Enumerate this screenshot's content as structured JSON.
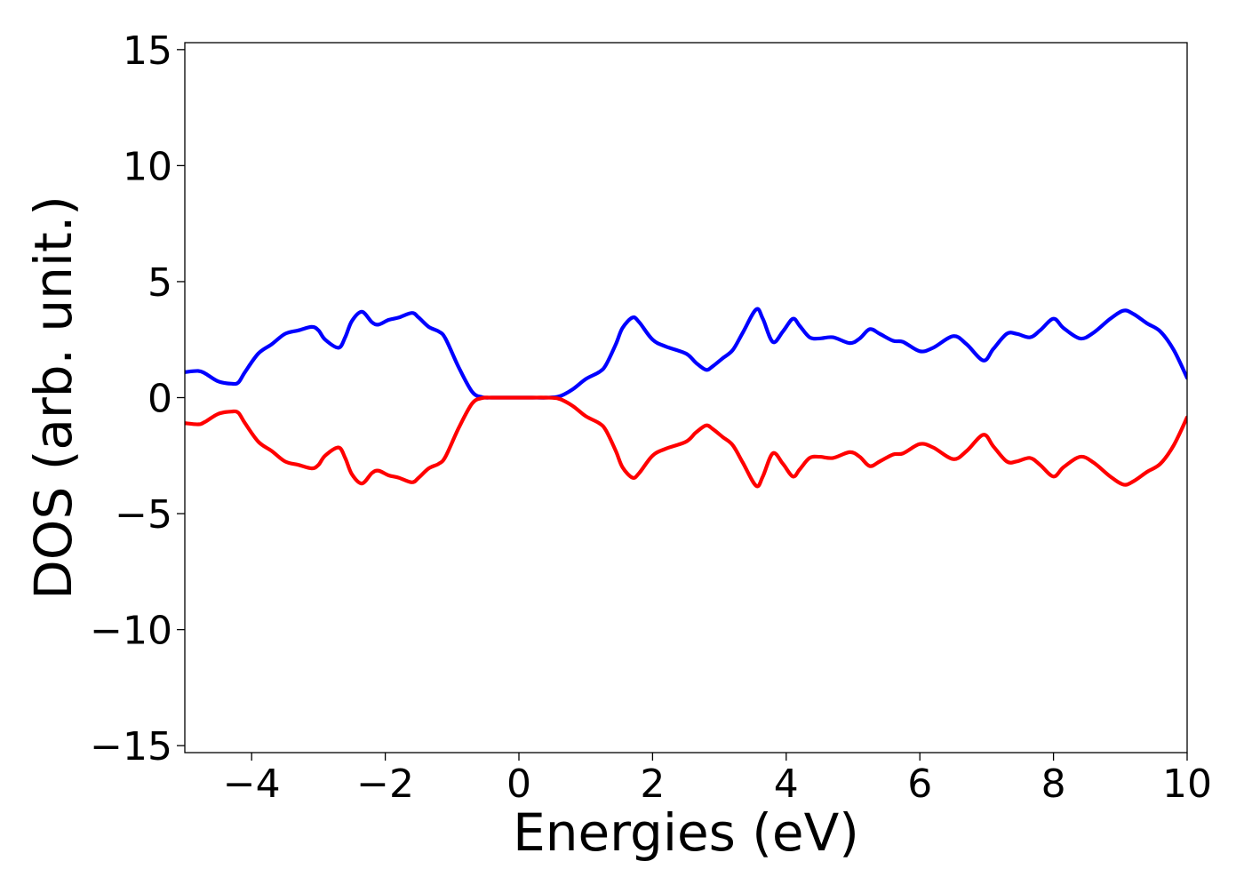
{
  "chart_data": {
    "type": "line",
    "title": "",
    "xlabel": "Energies (eV)",
    "ylabel": "DOS (arb. unit.)",
    "xlim": [
      -5,
      10
    ],
    "ylim": [
      -15.3,
      15.3
    ],
    "xticks": [
      -4,
      -2,
      0,
      2,
      4,
      6,
      8,
      10
    ],
    "xtick_labels": [
      "−4",
      "−2",
      "0",
      "2",
      "4",
      "6",
      "8",
      "10"
    ],
    "yticks": [
      15,
      10,
      5,
      0,
      -5,
      -10,
      -15
    ],
    "ytick_labels": [
      "15",
      "10",
      "5",
      "0",
      "−5",
      "−10",
      "−15"
    ],
    "grid": false,
    "legend": "none",
    "series": [
      {
        "color": "#0000ff",
        "x": [
          -5.0,
          -4.8,
          -4.7,
          -4.5,
          -4.3,
          -4.2,
          -4.1,
          -3.9,
          -3.7,
          -3.5,
          -3.3,
          -3.1,
          -3.0,
          -2.9,
          -2.7,
          -2.6,
          -2.5,
          -2.35,
          -2.2,
          -2.1,
          -1.95,
          -1.8,
          -1.6,
          -1.5,
          -1.35,
          -1.2,
          -1.1,
          -0.9,
          -0.7,
          -0.55,
          -0.4,
          -0.2,
          0.0,
          0.2,
          0.4,
          0.6,
          0.8,
          1.0,
          1.2,
          1.3,
          1.45,
          1.55,
          1.7,
          1.8,
          2.0,
          2.2,
          2.5,
          2.65,
          2.8,
          2.9,
          3.05,
          3.2,
          3.35,
          3.55,
          3.65,
          3.8,
          3.95,
          4.1,
          4.2,
          4.35,
          4.5,
          4.7,
          4.95,
          5.1,
          5.25,
          5.4,
          5.6,
          5.75,
          6.0,
          6.2,
          6.5,
          6.7,
          6.95,
          7.1,
          7.3,
          7.45,
          7.65,
          7.8,
          8.0,
          8.15,
          8.4,
          8.6,
          8.85,
          9.05,
          9.2,
          9.4,
          9.6,
          9.8,
          10.0
        ],
        "y": [
          1.1,
          1.15,
          1.05,
          0.7,
          0.6,
          0.65,
          1.1,
          1.9,
          2.3,
          2.75,
          2.9,
          3.05,
          2.9,
          2.5,
          2.15,
          2.6,
          3.3,
          3.7,
          3.25,
          3.15,
          3.35,
          3.45,
          3.65,
          3.45,
          3.05,
          2.85,
          2.55,
          1.3,
          0.25,
          0.02,
          0.0,
          0.0,
          0.0,
          0.0,
          0.0,
          0.05,
          0.35,
          0.8,
          1.1,
          1.4,
          2.3,
          3.0,
          3.45,
          3.25,
          2.5,
          2.2,
          1.9,
          1.5,
          1.2,
          1.35,
          1.7,
          2.05,
          2.8,
          3.8,
          3.4,
          2.4,
          2.85,
          3.4,
          3.1,
          2.6,
          2.55,
          2.6,
          2.35,
          2.55,
          2.95,
          2.75,
          2.45,
          2.4,
          2.0,
          2.15,
          2.65,
          2.3,
          1.6,
          2.1,
          2.75,
          2.75,
          2.6,
          2.9,
          3.4,
          3.0,
          2.55,
          2.8,
          3.4,
          3.75,
          3.6,
          3.2,
          2.85,
          2.05,
          0.85
        ]
      },
      {
        "color": "#ff0000",
        "x": [
          -5.0,
          -4.8,
          -4.7,
          -4.5,
          -4.3,
          -4.2,
          -4.1,
          -3.9,
          -3.7,
          -3.5,
          -3.3,
          -3.1,
          -3.0,
          -2.9,
          -2.7,
          -2.6,
          -2.5,
          -2.35,
          -2.2,
          -2.1,
          -1.95,
          -1.8,
          -1.6,
          -1.5,
          -1.35,
          -1.2,
          -1.1,
          -0.9,
          -0.7,
          -0.55,
          -0.4,
          -0.2,
          0.0,
          0.2,
          0.4,
          0.6,
          0.8,
          1.0,
          1.2,
          1.3,
          1.45,
          1.55,
          1.7,
          1.8,
          2.0,
          2.2,
          2.5,
          2.65,
          2.8,
          2.9,
          3.05,
          3.2,
          3.35,
          3.55,
          3.65,
          3.8,
          3.95,
          4.1,
          4.2,
          4.35,
          4.5,
          4.7,
          4.95,
          5.1,
          5.25,
          5.4,
          5.6,
          5.75,
          6.0,
          6.2,
          6.5,
          6.7,
          6.95,
          7.1,
          7.3,
          7.45,
          7.65,
          7.8,
          8.0,
          8.15,
          8.4,
          8.6,
          8.85,
          9.05,
          9.2,
          9.4,
          9.6,
          9.8,
          10.0
        ],
        "y": [
          -1.1,
          -1.15,
          -1.05,
          -0.7,
          -0.6,
          -0.65,
          -1.1,
          -1.9,
          -2.3,
          -2.75,
          -2.9,
          -3.05,
          -2.9,
          -2.5,
          -2.15,
          -2.6,
          -3.3,
          -3.7,
          -3.25,
          -3.15,
          -3.35,
          -3.45,
          -3.65,
          -3.45,
          -3.05,
          -2.85,
          -2.55,
          -1.3,
          -0.25,
          -0.02,
          0.0,
          0.0,
          0.0,
          0.0,
          0.0,
          -0.05,
          -0.35,
          -0.8,
          -1.1,
          -1.4,
          -2.3,
          -3.0,
          -3.45,
          -3.25,
          -2.5,
          -2.2,
          -1.9,
          -1.5,
          -1.2,
          -1.35,
          -1.7,
          -2.05,
          -2.8,
          -3.8,
          -3.4,
          -2.4,
          -2.85,
          -3.4,
          -3.1,
          -2.6,
          -2.55,
          -2.6,
          -2.35,
          -2.55,
          -2.95,
          -2.75,
          -2.45,
          -2.4,
          -2.0,
          -2.15,
          -2.65,
          -2.3,
          -1.6,
          -2.1,
          -2.75,
          -2.75,
          -2.6,
          -2.9,
          -3.4,
          -3.0,
          -2.55,
          -2.8,
          -3.4,
          -3.75,
          -3.6,
          -3.2,
          -2.85,
          -2.05,
          -0.85
        ]
      }
    ]
  }
}
